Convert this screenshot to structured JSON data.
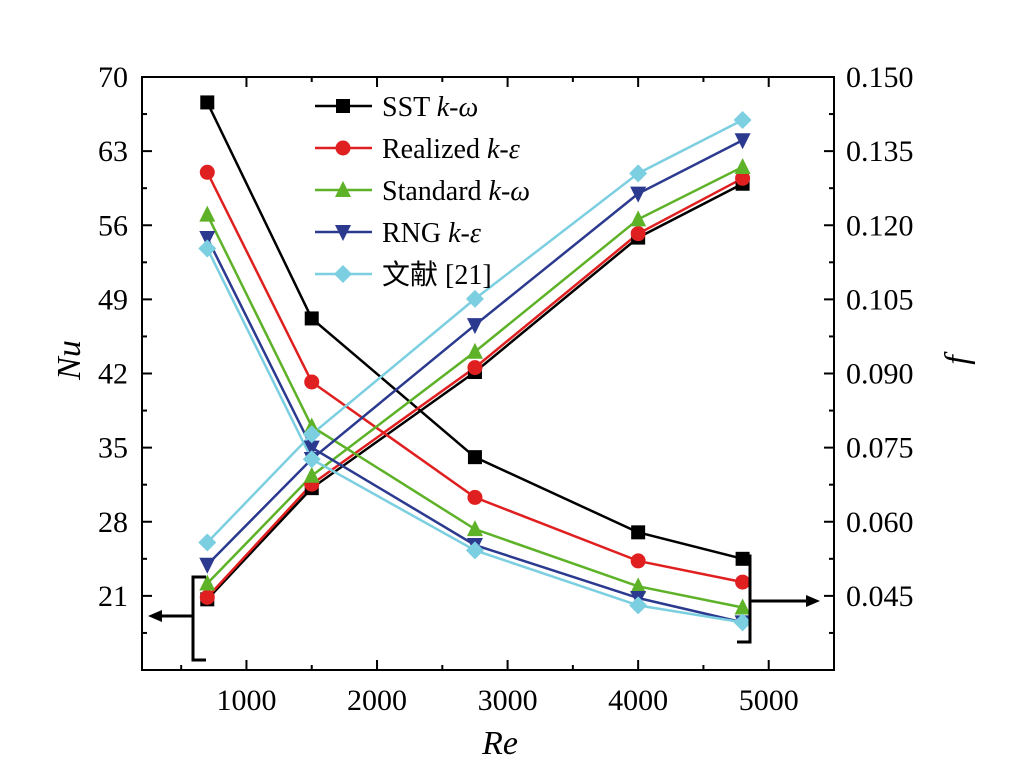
{
  "chart_data": {
    "type": "line",
    "xlabel": "Re",
    "ylabel_left": "Nu",
    "ylabel_right": "f",
    "xlim": [
      200,
      5500
    ],
    "ylim_left": [
      14,
      70
    ],
    "ylim_right": [
      0.03,
      0.15
    ],
    "x_ticks": [
      "1000",
      "2000",
      "3000",
      "4000",
      "5000"
    ],
    "y_left_ticks": [
      "21",
      "28",
      "35",
      "42",
      "49",
      "56",
      "63",
      "70"
    ],
    "y_right_ticks": [
      "0.045",
      "0.060",
      "0.075",
      "0.090",
      "0.105",
      "0.120",
      "0.135",
      "0.150"
    ],
    "legend_position": "top-left",
    "x": [
      700,
      1500,
      2750,
      4000,
      4800
    ],
    "series": [
      {
        "name": "SST k-ω",
        "name_prefix": "SST ",
        "name_italic": "k-ω",
        "color": "#000000",
        "marker": "square",
        "nu": [
          67.6,
          47.2,
          34.1,
          27.0,
          24.5
        ],
        "f": [
          0.0443,
          0.0668,
          0.0903,
          0.1175,
          0.1284
        ]
      },
      {
        "name": "Realized k-ε",
        "name_prefix": "Realized ",
        "name_italic": "k-ε",
        "color": "#e02020",
        "marker": "circle",
        "nu": [
          61.0,
          41.2,
          30.3,
          24.3,
          22.3
        ],
        "f": [
          0.0447,
          0.0676,
          0.0912,
          0.1183,
          0.1295
        ]
      },
      {
        "name": "Standard k-ω",
        "name_prefix": "Standard ",
        "name_italic": "k-ω",
        "color": "#5db228",
        "marker": "triangle-up",
        "nu": [
          57.0,
          37.0,
          27.3,
          21.9,
          19.9
        ],
        "f": [
          0.0475,
          0.0693,
          0.0944,
          0.1212,
          0.1318
        ]
      },
      {
        "name": "RNG k-ε",
        "name_prefix": "RNG ",
        "name_italic": "k-ε",
        "color": "#2b3a8f",
        "marker": "triangle-down",
        "nu": [
          54.8,
          35.0,
          25.8,
          20.8,
          18.5
        ],
        "f": [
          0.0513,
          0.0727,
          0.0998,
          0.1264,
          0.1372
        ]
      },
      {
        "name": "文献 [21]",
        "name_prefix": "文献 [21]",
        "name_italic": "",
        "color": "#7ccfe0",
        "marker": "diamond",
        "nu": [
          53.8,
          33.9,
          25.3,
          20.1,
          18.5
        ],
        "f": [
          0.0558,
          0.0777,
          0.1051,
          0.1305,
          0.1413
        ]
      }
    ]
  }
}
